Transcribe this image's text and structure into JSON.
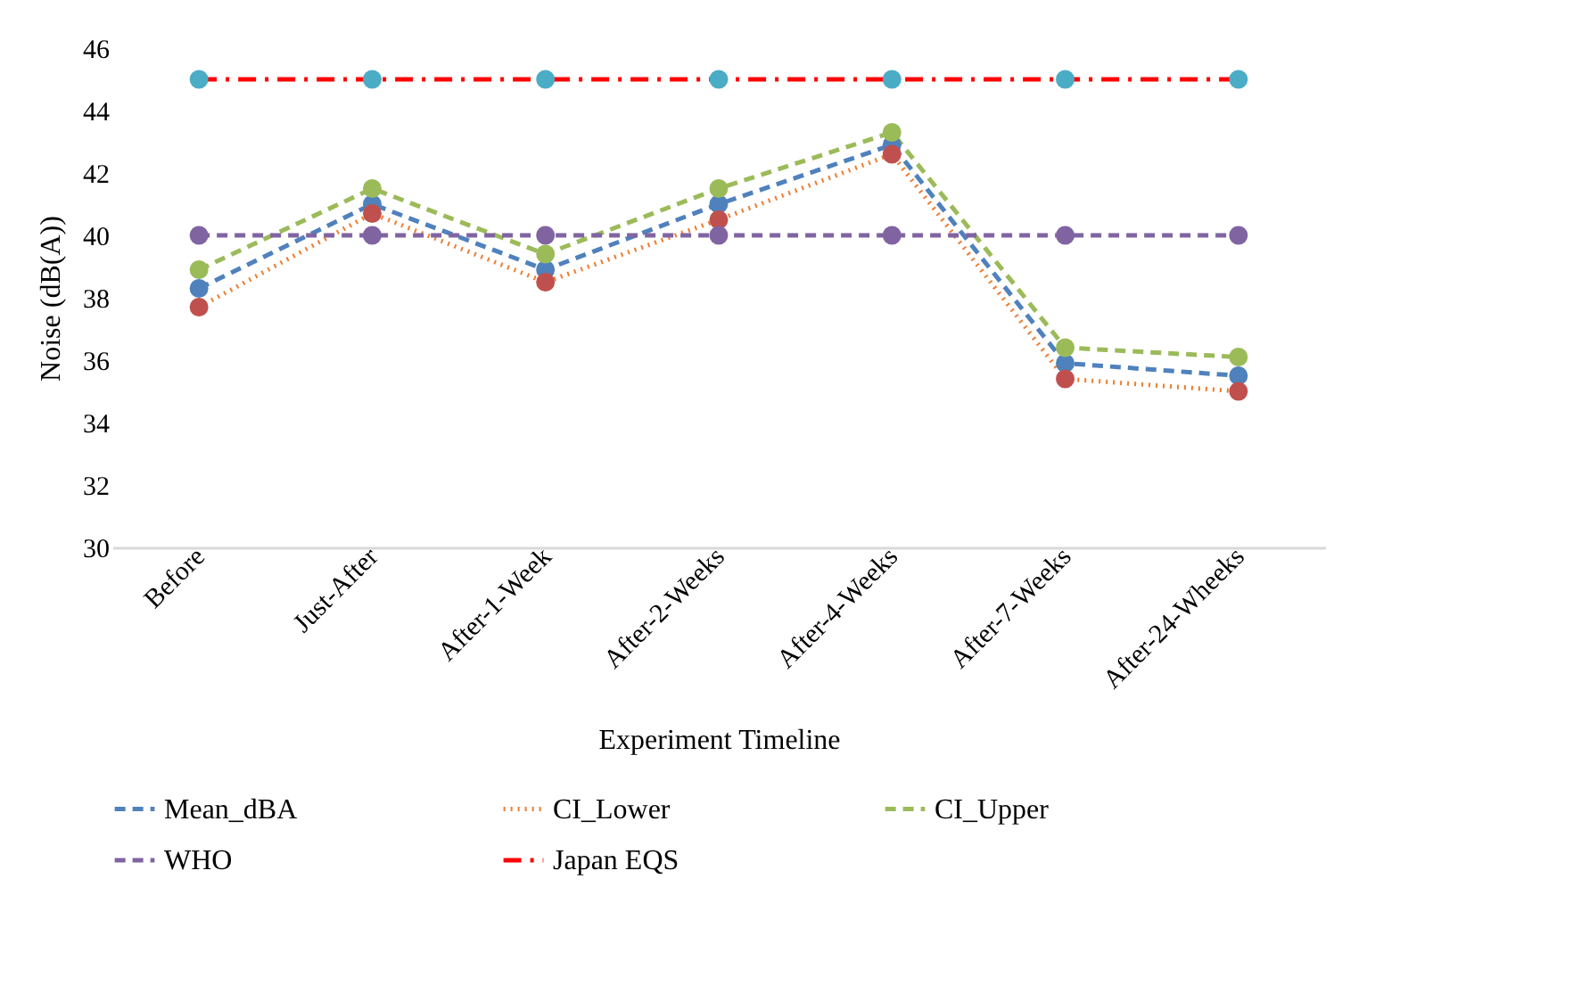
{
  "chart_data": {
    "type": "line",
    "xlabel": "Experiment Timeline",
    "ylabel": "Noise (dB(A))",
    "categories": [
      "Before",
      "Just-After",
      "After-1-Week",
      "After-2-Weeks",
      "After-4-Weeks",
      "After-7-Weeks",
      "After-24-Wheeks"
    ],
    "ylim": [
      30,
      46
    ],
    "yticks": [
      30,
      32,
      34,
      36,
      38,
      40,
      42,
      44,
      46
    ],
    "grid": false,
    "legend": "bottom",
    "marker": "circle",
    "series": [
      {
        "name": "Mean_dBA",
        "color": "#4f81bd",
        "line_style": "dashed",
        "values": [
          38.3,
          41.0,
          38.9,
          41.0,
          42.9,
          35.9,
          35.5
        ]
      },
      {
        "name": "CI_Lower",
        "color": "#ed7d31",
        "colors": [
          "#c0504d",
          "#c0504d",
          "#c0504d",
          "#c0504d",
          "#c0504d",
          "#c0504d",
          "#c0504d"
        ],
        "line_style": "dotted",
        "values": [
          37.7,
          40.7,
          38.5,
          40.5,
          42.6,
          35.4,
          35.0
        ]
      },
      {
        "name": "CI_Upper",
        "color": "#9bbb59",
        "line_style": "dashed",
        "values": [
          38.9,
          41.5,
          39.4,
          41.5,
          43.3,
          36.4,
          36.1
        ]
      },
      {
        "name": "WHO",
        "color": "#8064a2",
        "line_style": "dashed",
        "values": [
          40,
          40,
          40,
          40,
          40,
          40,
          40
        ]
      },
      {
        "name": "Japan EQS",
        "color": "#ff0000",
        "colors": [
          "#4bacc6",
          "#4bacc6",
          "#4bacc6",
          "#4bacc6",
          "#4bacc6",
          "#4bacc6",
          "#4bacc6"
        ],
        "line_style": "dashdot",
        "values": [
          45,
          45,
          45,
          45,
          45,
          45,
          45
        ]
      }
    ]
  }
}
